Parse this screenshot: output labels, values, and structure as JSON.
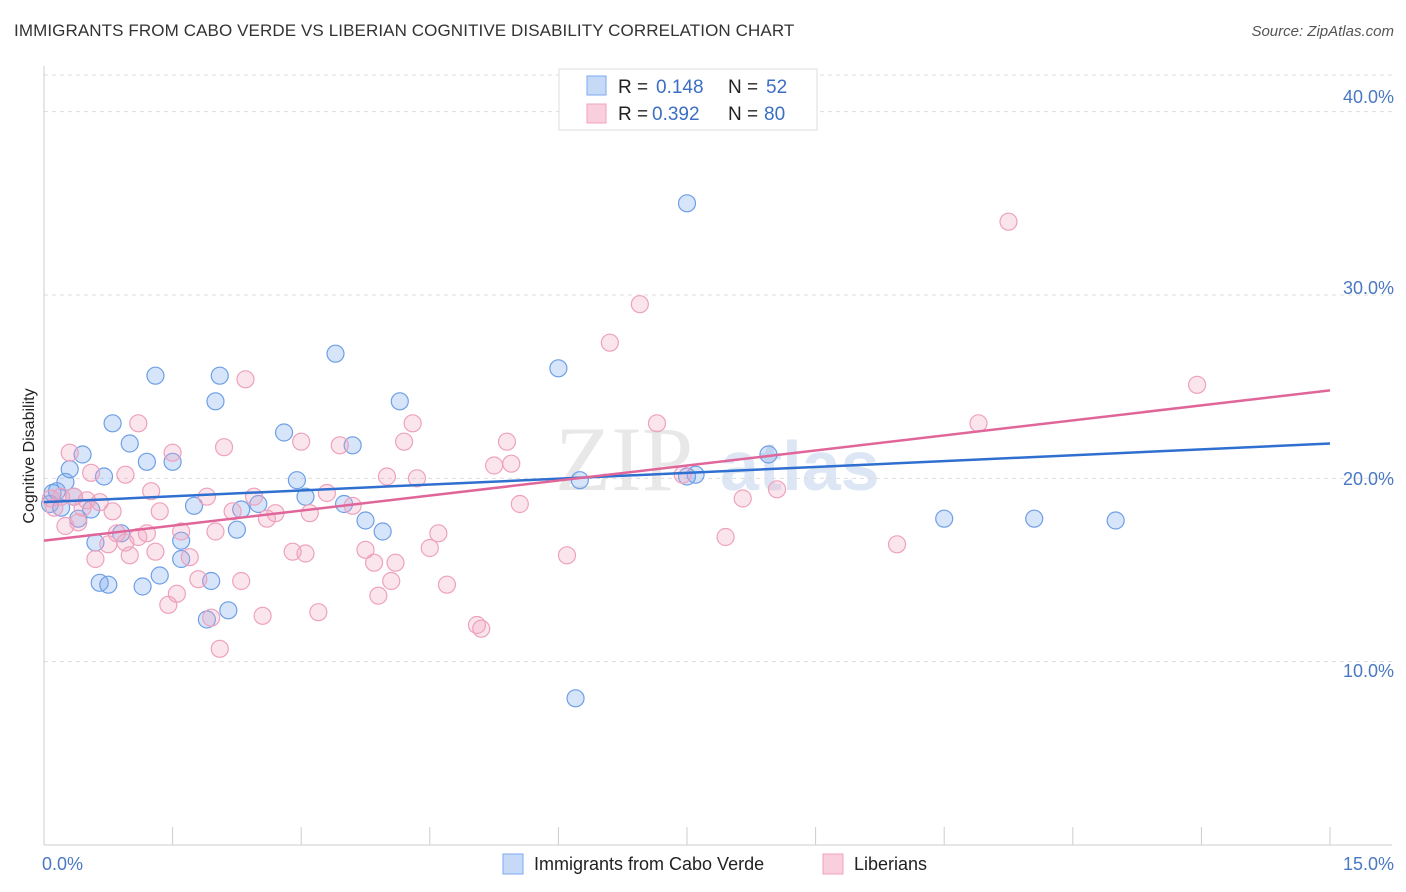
{
  "title": "IMMIGRANTS FROM CABO VERDE VS LIBERIAN COGNITIVE DISABILITY CORRELATION CHART",
  "source": "Source: ZipAtlas.com",
  "watermark": {
    "zip": "ZIP",
    "atlas": "atlas"
  },
  "colors": {
    "blue": "#7baaf0",
    "blue_line": "#2f6fcf",
    "pink": "#f2a2bf",
    "pink_line": "#e0669a",
    "axis_text": "#4a78c2"
  },
  "legend": {
    "r_label": "R =",
    "n_label": "N =",
    "series": [
      {
        "r": "0.148",
        "n": "52"
      },
      {
        "r": "0.392",
        "n": "80"
      }
    ]
  },
  "chart_data": {
    "type": "scatter",
    "xlabel": "",
    "ylabel": "Cognitive Disability",
    "xlim": [
      0,
      15
    ],
    "ylim": [
      0,
      42
    ],
    "x_tick_labels": [
      "0.0%",
      "15.0%"
    ],
    "y_ticks": [
      10,
      20,
      30,
      40
    ],
    "y_tick_labels": [
      "10.0%",
      "20.0%",
      "30.0%",
      "40.0%"
    ],
    "series": [
      {
        "name": "Immigrants from Cabo Verde",
        "trend": {
          "x": [
            0,
            15
          ],
          "y": [
            18.7,
            21.9
          ]
        },
        "points": [
          [
            0.07,
            18.6
          ],
          [
            0.1,
            19.2
          ],
          [
            0.15,
            19.3
          ],
          [
            0.2,
            18.4
          ],
          [
            0.25,
            19.8
          ],
          [
            0.3,
            20.5
          ],
          [
            0.35,
            19.0
          ],
          [
            0.4,
            17.8
          ],
          [
            0.45,
            21.3
          ],
          [
            0.55,
            18.3
          ],
          [
            0.6,
            16.5
          ],
          [
            0.65,
            14.3
          ],
          [
            0.7,
            20.1
          ],
          [
            0.75,
            14.2
          ],
          [
            0.8,
            23.0
          ],
          [
            0.9,
            17.0
          ],
          [
            1.0,
            21.9
          ],
          [
            1.15,
            14.1
          ],
          [
            1.2,
            20.9
          ],
          [
            1.3,
            25.6
          ],
          [
            1.35,
            14.7
          ],
          [
            1.5,
            20.9
          ],
          [
            1.6,
            16.6
          ],
          [
            1.75,
            18.5
          ],
          [
            1.9,
            12.3
          ],
          [
            1.95,
            14.4
          ],
          [
            2.0,
            24.2
          ],
          [
            2.05,
            25.6
          ],
          [
            2.15,
            12.8
          ],
          [
            2.25,
            17.2
          ],
          [
            2.3,
            18.3
          ],
          [
            2.5,
            18.6
          ],
          [
            2.8,
            22.5
          ],
          [
            2.95,
            19.9
          ],
          [
            3.05,
            19.0
          ],
          [
            3.4,
            26.8
          ],
          [
            3.5,
            18.6
          ],
          [
            3.6,
            21.8
          ],
          [
            3.75,
            17.7
          ],
          [
            3.95,
            17.1
          ],
          [
            4.15,
            24.2
          ],
          [
            6.0,
            26.0
          ],
          [
            6.2,
            8.0
          ],
          [
            6.25,
            19.9
          ],
          [
            7.5,
            35.0
          ],
          [
            7.6,
            20.2
          ],
          [
            7.5,
            20.1
          ],
          [
            8.45,
            21.3
          ],
          [
            10.5,
            17.8
          ],
          [
            11.55,
            17.8
          ],
          [
            12.5,
            17.7
          ],
          [
            1.6,
            15.6
          ]
        ]
      },
      {
        "name": "Liberians",
        "trend": {
          "x": [
            0,
            15
          ],
          "y": [
            16.6,
            24.8
          ]
        },
        "points": [
          [
            0.08,
            18.9
          ],
          [
            0.12,
            18.4
          ],
          [
            0.2,
            19.0
          ],
          [
            0.25,
            17.4
          ],
          [
            0.3,
            21.4
          ],
          [
            0.35,
            19.0
          ],
          [
            0.4,
            17.6
          ],
          [
            0.5,
            18.8
          ],
          [
            0.55,
            20.3
          ],
          [
            0.6,
            15.6
          ],
          [
            0.65,
            18.7
          ],
          [
            0.75,
            16.4
          ],
          [
            0.8,
            18.2
          ],
          [
            0.85,
            17.0
          ],
          [
            0.95,
            16.5
          ],
          [
            1.0,
            15.8
          ],
          [
            1.1,
            23.0
          ],
          [
            1.2,
            17.0
          ],
          [
            1.25,
            19.3
          ],
          [
            1.3,
            16.0
          ],
          [
            1.35,
            18.2
          ],
          [
            1.45,
            13.1
          ],
          [
            1.5,
            21.4
          ],
          [
            1.55,
            13.7
          ],
          [
            1.6,
            17.1
          ],
          [
            1.7,
            15.7
          ],
          [
            1.8,
            14.5
          ],
          [
            1.9,
            19.0
          ],
          [
            1.95,
            12.4
          ],
          [
            2.05,
            10.7
          ],
          [
            2.1,
            21.7
          ],
          [
            2.2,
            18.2
          ],
          [
            2.3,
            14.4
          ],
          [
            2.35,
            25.4
          ],
          [
            2.45,
            19.0
          ],
          [
            2.55,
            12.5
          ],
          [
            2.6,
            17.8
          ],
          [
            2.7,
            18.1
          ],
          [
            2.9,
            16.0
          ],
          [
            3.0,
            22.0
          ],
          [
            3.1,
            18.1
          ],
          [
            3.2,
            12.7
          ],
          [
            3.3,
            19.2
          ],
          [
            3.45,
            21.8
          ],
          [
            3.6,
            18.5
          ],
          [
            3.75,
            16.1
          ],
          [
            3.85,
            15.4
          ],
          [
            3.9,
            13.6
          ],
          [
            4.0,
            20.1
          ],
          [
            4.05,
            14.4
          ],
          [
            4.1,
            15.4
          ],
          [
            4.2,
            22.0
          ],
          [
            4.3,
            23.0
          ],
          [
            4.35,
            20.0
          ],
          [
            4.5,
            16.2
          ],
          [
            4.6,
            17.0
          ],
          [
            4.7,
            14.2
          ],
          [
            5.05,
            12.0
          ],
          [
            5.1,
            11.8
          ],
          [
            5.25,
            20.7
          ],
          [
            5.4,
            22.0
          ],
          [
            5.45,
            20.8
          ],
          [
            5.55,
            18.6
          ],
          [
            6.1,
            15.8
          ],
          [
            6.6,
            27.4
          ],
          [
            6.95,
            29.5
          ],
          [
            7.15,
            23.0
          ],
          [
            7.45,
            20.2
          ],
          [
            7.95,
            16.8
          ],
          [
            8.15,
            18.9
          ],
          [
            8.55,
            19.4
          ],
          [
            9.95,
            16.4
          ],
          [
            10.9,
            23.0
          ],
          [
            11.25,
            34.0
          ],
          [
            13.45,
            25.1
          ],
          [
            0.45,
            18.4
          ],
          [
            0.95,
            20.2
          ],
          [
            2.0,
            17.1
          ],
          [
            3.05,
            15.9
          ],
          [
            1.1,
            16.8
          ]
        ]
      }
    ],
    "legend_entries": [
      "Immigrants from Cabo Verde",
      "Liberians"
    ]
  }
}
